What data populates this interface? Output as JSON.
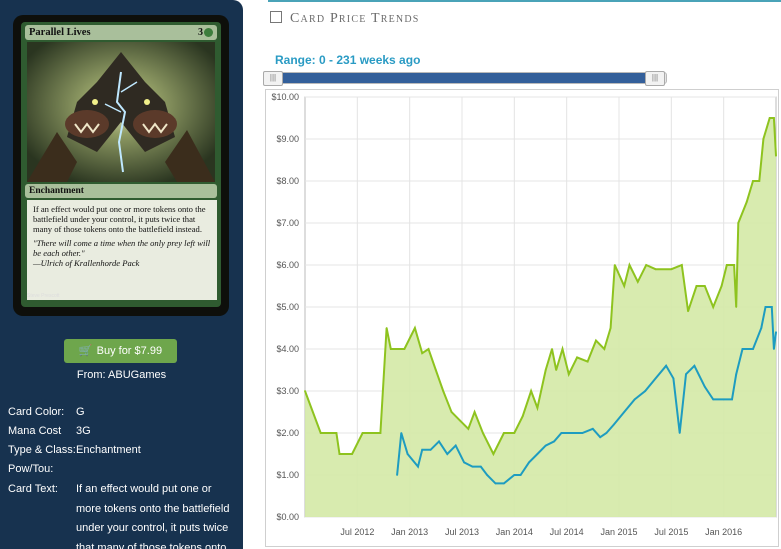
{
  "card_image": {
    "name": "Parallel Lives",
    "mana": "3",
    "type_line": "Enchantment",
    "rules_text": "If an effect would put one or more tokens onto the battlefield under your control, it puts twice that many of those tokens onto the battlefield instead.",
    "flavor_text": "\"There will come a time when the only prey left will be each other.\"",
    "flavor_attribution": "—Ulrich of Krallenhorde Pack",
    "artist": "Steve Prescott"
  },
  "buy": {
    "label": "Buy for $7.99",
    "from": "From: ABUGames"
  },
  "attributes": {
    "color_label": "Card Color:",
    "color": "G",
    "mana_label": "Mana Cost",
    "mana": "3G",
    "type_label": "Type & Class:",
    "type": "Enchantment",
    "pt_label": "Pow/Tou:",
    "pt": "",
    "text_label": "Card Text:",
    "text": "If an effect would put one or more tokens onto the battlefield under your control, it puts twice that many of those tokens onto"
  },
  "header": {
    "title": "Card Price Trends",
    "range": "Range: 0 - 231 weeks ago"
  },
  "slider": {
    "fill_fraction": 0.975
  },
  "colors": {
    "sidebar": "#17324f",
    "accent": "#2a9bc4",
    "button": "#6ea64c",
    "series_1": "#8ec31f",
    "series_2": "#1e9cc0"
  },
  "chart_data": {
    "type": "line",
    "y_ticks": [
      "$0.00",
      "$1.00",
      "$2.00",
      "$3.00",
      "$4.00",
      "$5.00",
      "$6.00",
      "$7.00",
      "$8.00",
      "$9.00",
      "$10.00"
    ],
    "ylim": [
      0,
      10
    ],
    "x_ticks": [
      "Jul 2012",
      "Jan 2013",
      "Jul 2013",
      "Jan 2014",
      "Jul 2014",
      "Jan 2015",
      "Jul 2015",
      "Jan 2016"
    ],
    "xlim": [
      2012.0,
      2016.5
    ],
    "grid": true,
    "series": [
      {
        "points": [
          [
            2012.0,
            3.0
          ],
          [
            2012.15,
            2.0
          ],
          [
            2012.3,
            2.0
          ],
          [
            2012.33,
            1.5
          ],
          [
            2012.45,
            1.5
          ],
          [
            2012.55,
            2.0
          ],
          [
            2012.72,
            2.0
          ],
          [
            2012.78,
            4.5
          ],
          [
            2012.82,
            4.0
          ],
          [
            2012.95,
            4.0
          ],
          [
            2013.05,
            4.5
          ],
          [
            2013.12,
            3.9
          ],
          [
            2013.18,
            4.0
          ],
          [
            2013.25,
            3.5
          ],
          [
            2013.32,
            3.0
          ],
          [
            2013.4,
            2.5
          ],
          [
            2013.48,
            2.3
          ],
          [
            2013.56,
            2.1
          ],
          [
            2013.62,
            2.5
          ],
          [
            2013.7,
            2.0
          ],
          [
            2013.8,
            1.5
          ],
          [
            2013.9,
            2.0
          ],
          [
            2014.0,
            2.0
          ],
          [
            2014.08,
            2.4
          ],
          [
            2014.16,
            3.0
          ],
          [
            2014.22,
            2.6
          ],
          [
            2014.3,
            3.5
          ],
          [
            2014.36,
            4.0
          ],
          [
            2014.4,
            3.5
          ],
          [
            2014.46,
            4.0
          ],
          [
            2014.52,
            3.4
          ],
          [
            2014.6,
            3.8
          ],
          [
            2014.7,
            3.7
          ],
          [
            2014.78,
            4.2
          ],
          [
            2014.86,
            4.0
          ],
          [
            2014.92,
            4.5
          ],
          [
            2014.96,
            6.0
          ],
          [
            2015.05,
            5.5
          ],
          [
            2015.1,
            6.0
          ],
          [
            2015.18,
            5.6
          ],
          [
            2015.26,
            6.0
          ],
          [
            2015.35,
            5.9
          ],
          [
            2015.5,
            5.9
          ],
          [
            2015.6,
            6.0
          ],
          [
            2015.66,
            4.9
          ],
          [
            2015.74,
            5.5
          ],
          [
            2015.82,
            5.5
          ],
          [
            2015.9,
            5.0
          ],
          [
            2015.98,
            5.5
          ],
          [
            2016.03,
            6.0
          ],
          [
            2016.1,
            6.0
          ],
          [
            2016.12,
            5.0
          ],
          [
            2016.14,
            7.0
          ],
          [
            2016.22,
            7.5
          ],
          [
            2016.28,
            8.0
          ],
          [
            2016.34,
            8.0
          ],
          [
            2016.38,
            9.0
          ],
          [
            2016.44,
            9.5
          ],
          [
            2016.48,
            9.5
          ],
          [
            2016.5,
            8.6
          ]
        ]
      },
      {
        "points": [
          [
            2012.88,
            1.0
          ],
          [
            2012.92,
            2.0
          ],
          [
            2012.98,
            1.5
          ],
          [
            2013.08,
            1.2
          ],
          [
            2013.12,
            1.6
          ],
          [
            2013.2,
            1.6
          ],
          [
            2013.28,
            1.8
          ],
          [
            2013.36,
            1.5
          ],
          [
            2013.44,
            1.7
          ],
          [
            2013.52,
            1.3
          ],
          [
            2013.6,
            1.2
          ],
          [
            2013.68,
            1.2
          ],
          [
            2013.74,
            1.0
          ],
          [
            2013.82,
            0.8
          ],
          [
            2013.9,
            0.8
          ],
          [
            2014.0,
            1.0
          ],
          [
            2014.06,
            1.0
          ],
          [
            2014.14,
            1.3
          ],
          [
            2014.22,
            1.5
          ],
          [
            2014.3,
            1.7
          ],
          [
            2014.38,
            1.8
          ],
          [
            2014.45,
            2.0
          ],
          [
            2014.55,
            2.0
          ],
          [
            2014.65,
            2.0
          ],
          [
            2014.75,
            2.1
          ],
          [
            2014.82,
            1.9
          ],
          [
            2014.88,
            2.0
          ],
          [
            2014.95,
            2.2
          ],
          [
            2015.05,
            2.5
          ],
          [
            2015.15,
            2.8
          ],
          [
            2015.25,
            3.0
          ],
          [
            2015.35,
            3.3
          ],
          [
            2015.45,
            3.6
          ],
          [
            2015.52,
            3.3
          ],
          [
            2015.58,
            2.0
          ],
          [
            2015.64,
            3.4
          ],
          [
            2015.72,
            3.6
          ],
          [
            2015.82,
            3.1
          ],
          [
            2015.9,
            2.8
          ],
          [
            2016.0,
            2.8
          ],
          [
            2016.08,
            2.8
          ],
          [
            2016.12,
            3.4
          ],
          [
            2016.18,
            4.0
          ],
          [
            2016.28,
            4.0
          ],
          [
            2016.36,
            4.5
          ],
          [
            2016.4,
            5.0
          ],
          [
            2016.46,
            5.0
          ],
          [
            2016.48,
            4.0
          ],
          [
            2016.5,
            4.4
          ]
        ]
      }
    ]
  }
}
